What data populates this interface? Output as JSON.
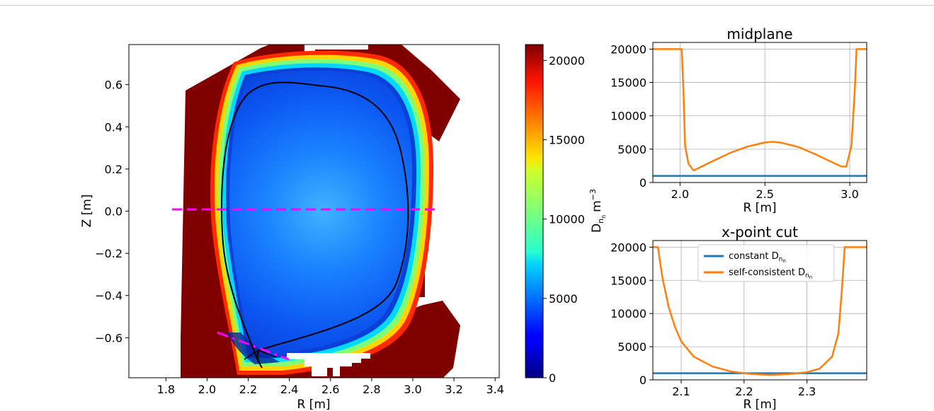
{
  "colors": {
    "blue": "#1f77b4",
    "orange": "#ff7f0e",
    "magenta": "#ff00ff",
    "wall": "#800000",
    "grid": "#b0b0b0"
  },
  "chart_data": [
    {
      "type": "heatmap",
      "colormap": "jet",
      "xlabel": "R [m]",
      "ylabel": "Z [m]",
      "xlim": [
        1.62,
        3.42
      ],
      "ylim": [
        -0.79,
        0.79
      ],
      "xticks": [
        "1.8",
        "2.0",
        "2.2",
        "2.4",
        "2.6",
        "2.8",
        "3.0",
        "3.2",
        "3.4"
      ],
      "yticks": [
        "0.6",
        "0.4",
        "0.2",
        "0.0",
        "−0.2",
        "−0.4",
        "−0.6"
      ],
      "colorbar": {
        "label": "D_{n_n} m^{-3}",
        "label_main": "D",
        "label_sub": "n",
        "label_subsub": "n",
        "label_unit": "m",
        "label_exp": "−3",
        "range": [
          0,
          21000
        ],
        "ticks": [
          "0",
          "5000",
          "10000",
          "15000",
          "20000"
        ]
      },
      "midplane_cut": {
        "r": [
          1.84,
          3.1
        ],
        "z": [
          0.01,
          0.01
        ]
      },
      "xpoint_cut": {
        "r": [
          2.06,
          2.38
        ],
        "z": [
          -0.575,
          -0.71
        ]
      }
    },
    {
      "type": "line",
      "title": "midplane",
      "xlabel": "R [m]",
      "xlim": [
        1.84,
        3.1
      ],
      "ylim": [
        0,
        21000
      ],
      "xticks": [
        "2.0",
        "2.5",
        "3.0"
      ],
      "yticks": [
        "0",
        "5000",
        "10000",
        "15000",
        "20000"
      ],
      "grid": true,
      "series": [
        {
          "color": "blue",
          "x": [
            1.84,
            3.1
          ],
          "values": [
            1000,
            1000
          ]
        },
        {
          "color": "orange",
          "x": [
            1.84,
            2.01,
            2.02,
            2.03,
            2.05,
            2.08,
            2.12,
            2.2,
            2.3,
            2.4,
            2.5,
            2.55,
            2.6,
            2.7,
            2.8,
            2.9,
            2.95,
            2.98,
            3.01,
            3.03,
            3.04,
            3.1
          ],
          "values": [
            20000,
            20000,
            14000,
            5500,
            2800,
            1800,
            2300,
            3300,
            4500,
            5400,
            6000,
            6100,
            5950,
            5300,
            4200,
            3000,
            2400,
            2400,
            5500,
            14000,
            20000,
            20000
          ]
        }
      ]
    },
    {
      "type": "line",
      "title": "x-point cut",
      "xlabel": "R [m]",
      "xlim": [
        2.055,
        2.395
      ],
      "ylim": [
        0,
        21000
      ],
      "xticks": [
        "2.1",
        "2.2",
        "2.3"
      ],
      "yticks": [
        "0",
        "5000",
        "10000",
        "15000",
        "20000"
      ],
      "grid": true,
      "legend": {
        "placement": "top-center",
        "entries": [
          {
            "label": "constant D",
            "sub": "n",
            "subsub": "n",
            "color": "blue"
          },
          {
            "label": "self-consistent D",
            "sub": "n",
            "subsub": "n",
            "color": "orange"
          }
        ]
      },
      "series": [
        {
          "name": "constant D_{n_n}",
          "color": "blue",
          "x": [
            2.055,
            2.395
          ],
          "values": [
            1000,
            1000
          ]
        },
        {
          "name": "self-consistent D_{n_n}",
          "color": "orange",
          "x": [
            2.055,
            2.063,
            2.07,
            2.08,
            2.09,
            2.1,
            2.12,
            2.15,
            2.18,
            2.21,
            2.24,
            2.27,
            2.3,
            2.32,
            2.34,
            2.35,
            2.355,
            2.36,
            2.365,
            2.395
          ],
          "values": [
            20000,
            20000,
            15500,
            11000,
            8000,
            5800,
            3500,
            2000,
            1250,
            900,
            750,
            850,
            1150,
            1700,
            3500,
            7000,
            13000,
            20000,
            20000,
            20000
          ]
        }
      ]
    }
  ]
}
